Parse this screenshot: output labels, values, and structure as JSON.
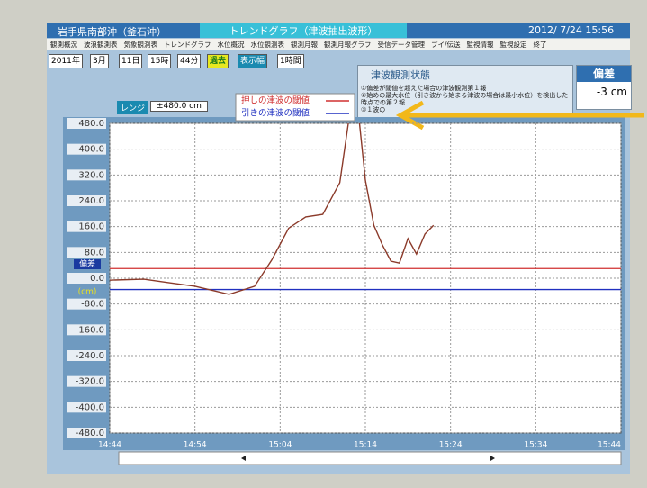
{
  "header": {
    "location": "岩手県南部沖（釜石沖）",
    "title": "トレンドグラフ（津波抽出波形）",
    "datetime": "2012/ 7/24 15:56"
  },
  "menu": [
    "観測概況",
    "波浪観測表",
    "気象観測表",
    "トレンドグラフ",
    "水位概況",
    "水位観測表",
    "観測月報",
    "観測月報グラフ",
    "受信データ管理",
    "ブイ/伝送",
    "監視情報",
    "監視設定",
    "終了"
  ],
  "controls": {
    "year": "2011年",
    "month": "3月",
    "day": "11日",
    "hour": "15時",
    "minute": "44分",
    "past": "過去",
    "width_label": "表示幅",
    "width_value": "1時間"
  },
  "status": {
    "title": "津波観測状態",
    "lines": [
      "①偏差が閾値を超えた場合の津波観測第１報",
      "②始めの最大水位（引き波から始まる津波の場合は最小水位）を検出した時点での第２報",
      "③１波の"
    ]
  },
  "deviation": {
    "label": "偏差",
    "value": "-3 cm"
  },
  "range": {
    "label": "レンジ",
    "value": "±480.0 cm"
  },
  "chart_data": {
    "type": "line",
    "y_label": "偏差",
    "y_unit": "(cm)",
    "x": [
      "14:44",
      "14:48",
      "14:51",
      "14:54",
      "14:58",
      "15:01",
      "15:03",
      "15:05",
      "15:07",
      "15:09",
      "15:11",
      "15:12",
      "15:13",
      "15:14",
      "15:15",
      "15:16",
      "15:17",
      "15:18",
      "15:19",
      "15:20",
      "15:21",
      "15:22"
    ],
    "series": [
      {
        "color": "#8b3a2a",
        "values": [
          -6,
          -3,
          -14,
          -25,
          -50,
          -25,
          56,
          155,
          190,
          198,
          296,
          480,
          560,
          304,
          164,
          103,
          53,
          47,
          123,
          75,
          137,
          164
        ]
      }
    ],
    "thresholds": [
      {
        "name": "押しの津波の閾値",
        "color": "#d03030",
        "value": 30
      },
      {
        "name": "引きの津波の閾値",
        "color": "#2030c0",
        "value": -35
      }
    ],
    "xlim": [
      "14:44",
      "15:44"
    ],
    "xticks": [
      "14:44",
      "14:54",
      "15:04",
      "15:14",
      "15:24",
      "15:34",
      "15:44"
    ],
    "ylim": [
      -480,
      480
    ],
    "yticks": [
      {
        "value": 480,
        "label": "480.0"
      },
      {
        "value": 400,
        "label": "400.0"
      },
      {
        "value": 320,
        "label": "320.0"
      },
      {
        "value": 240,
        "label": "240.0"
      },
      {
        "value": 160,
        "label": "160.0"
      },
      {
        "value": 80,
        "label": "80.0"
      },
      {
        "value": 0,
        "label": "0.0"
      },
      {
        "value": -80,
        "label": "-80.0"
      },
      {
        "value": -160,
        "label": "-160.0"
      },
      {
        "value": -240,
        "label": "-240.0"
      },
      {
        "value": -320,
        "label": "-320.0"
      },
      {
        "value": -400,
        "label": "-400.0"
      },
      {
        "value": -480,
        "label": "-480.0"
      }
    ],
    "grid": true
  }
}
